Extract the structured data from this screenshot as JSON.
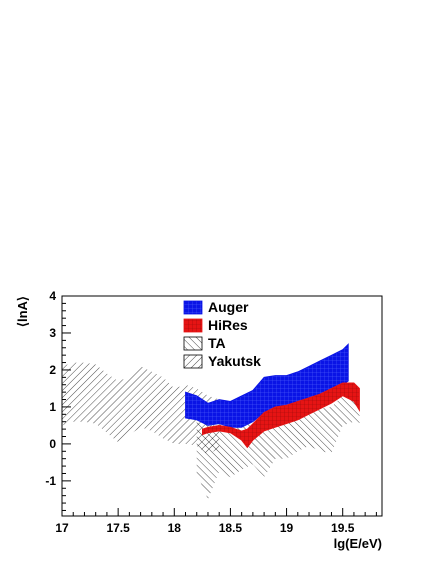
{
  "chart_data": {
    "type": "area",
    "xlabel": "lg(E/eV)",
    "ylabel": "⟨lnA⟩",
    "xlim": [
      17,
      19.85
    ],
    "ylim": [
      -1.95,
      4
    ],
    "x_ticks": [
      "17",
      "17.5",
      "18",
      "18.5",
      "19",
      "19.5"
    ],
    "x_tick_values": [
      17,
      17.5,
      18,
      18.5,
      19,
      19.5
    ],
    "y_ticks": [
      "-1",
      "0",
      "1",
      "2",
      "3",
      "4"
    ],
    "y_tick_values": [
      -1,
      0,
      1,
      2,
      3,
      4
    ],
    "legend_position": "top-center",
    "series": [
      {
        "name": "Yakutsk",
        "fill": "hatch-forward",
        "color": "#000000",
        "x": [
          17.0,
          17.1,
          17.2,
          17.3,
          17.4,
          17.5,
          17.6,
          17.7,
          17.8,
          17.9,
          18.0,
          18.1,
          18.2,
          18.3,
          18.4
        ],
        "upper": [
          2.1,
          2.2,
          2.2,
          2.15,
          1.9,
          1.7,
          1.8,
          2.1,
          1.95,
          1.8,
          1.5,
          1.6,
          1.5,
          1.3,
          1.2
        ],
        "lower": [
          0.5,
          0.6,
          0.6,
          0.55,
          0.3,
          0.05,
          0.25,
          0.45,
          0.35,
          0.15,
          0.0,
          0.0,
          -0.05,
          -0.3,
          -0.1
        ]
      },
      {
        "name": "TA",
        "fill": "hatch-back",
        "color": "#000000",
        "x": [
          18.2,
          18.3,
          18.4,
          18.5,
          18.6,
          18.7,
          18.8,
          18.9,
          19.0,
          19.1,
          19.2,
          19.3,
          19.4,
          19.5,
          19.6,
          19.65
        ],
        "upper": [
          0.6,
          0.6,
          0.8,
          0.6,
          0.5,
          0.55,
          0.95,
          0.85,
          0.8,
          0.7,
          1.0,
          0.95,
          1.0,
          1.3,
          1.6,
          1.5
        ],
        "lower": [
          -0.8,
          -1.5,
          -0.75,
          -0.9,
          -0.7,
          -0.55,
          -0.9,
          -0.4,
          -0.4,
          -0.2,
          -0.05,
          -0.2,
          -0.25,
          0.5,
          0.6,
          0.4
        ]
      },
      {
        "name": "Auger",
        "fill": "solid",
        "color": "#0a14e6",
        "x": [
          18.1,
          18.2,
          18.3,
          18.4,
          18.5,
          18.6,
          18.7,
          18.8,
          18.9,
          19.0,
          19.1,
          19.2,
          19.3,
          19.4,
          19.5,
          19.55
        ],
        "upper": [
          1.4,
          1.3,
          1.1,
          1.2,
          1.15,
          1.3,
          1.45,
          1.8,
          1.85,
          1.85,
          1.95,
          2.1,
          2.25,
          2.4,
          2.55,
          2.7
        ],
        "lower": [
          0.7,
          0.65,
          0.5,
          0.55,
          0.45,
          0.45,
          0.6,
          0.85,
          0.95,
          1.0,
          1.05,
          1.2,
          1.3,
          1.45,
          1.6,
          1.7
        ]
      },
      {
        "name": "HiRes",
        "fill": "solid",
        "color": "#e61414",
        "x": [
          18.25,
          18.3,
          18.4,
          18.5,
          18.6,
          18.65,
          18.7,
          18.8,
          18.9,
          19.0,
          19.1,
          19.2,
          19.3,
          19.4,
          19.5,
          19.6,
          19.65
        ],
        "upper": [
          0.4,
          0.45,
          0.5,
          0.45,
          0.35,
          0.4,
          0.55,
          0.85,
          1.0,
          1.05,
          1.15,
          1.25,
          1.35,
          1.5,
          1.65,
          1.65,
          1.5
        ],
        "lower": [
          0.25,
          0.3,
          0.35,
          0.3,
          0.1,
          -0.1,
          0.1,
          0.35,
          0.45,
          0.55,
          0.65,
          0.8,
          0.95,
          1.1,
          1.3,
          1.15,
          0.9
        ]
      }
    ]
  }
}
